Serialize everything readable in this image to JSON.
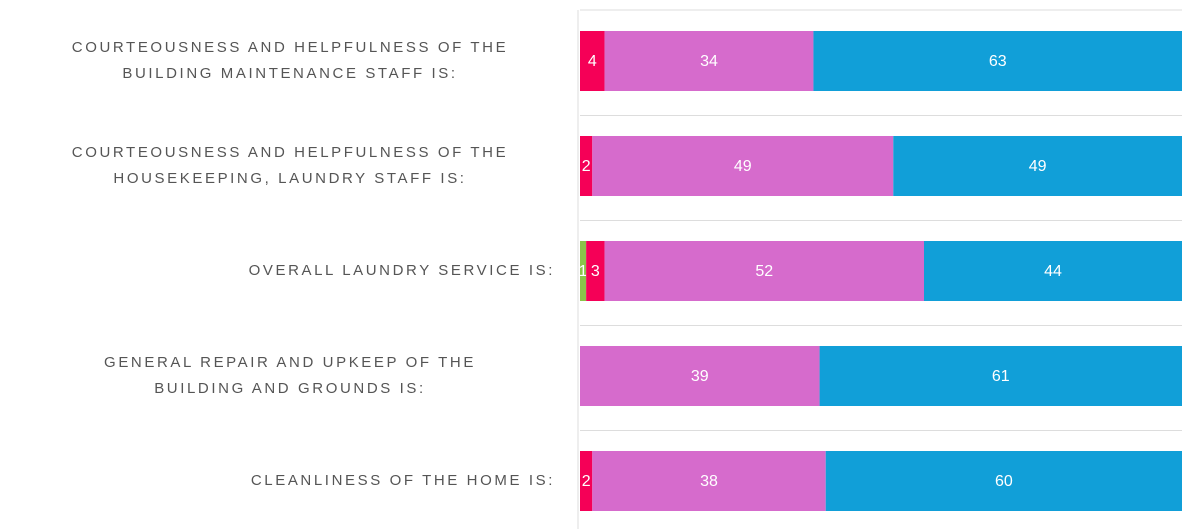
{
  "chart_data": {
    "type": "stacked-bar-horizontal",
    "categories": [
      [
        "COURTEOUSNESS AND HELPFULNESS OF THE",
        "BUILDING MAINTENANCE STAFF IS:"
      ],
      [
        "COURTEOUSNESS AND HELPFULNESS OF THE",
        "HOUSEKEEPING, LAUNDRY STAFF IS:"
      ],
      [
        "OVERALL LAUNDRY SERVICE IS:"
      ],
      [
        "GENERAL REPAIR AND UPKEEP OF THE",
        "BUILDING AND GROUNDS IS:"
      ],
      [
        "CLEANLINESS OF THE HOME IS:"
      ]
    ],
    "series": [
      {
        "color": "#8bc34a",
        "values": [
          0,
          0,
          1,
          0,
          0
        ]
      },
      {
        "color": "#f50057",
        "values": [
          4,
          2,
          3,
          0,
          2
        ]
      },
      {
        "color": "#d66bcc",
        "values": [
          34,
          49,
          52,
          39,
          38
        ]
      },
      {
        "color": "#119fd8",
        "values": [
          63,
          49,
          44,
          61,
          60
        ]
      }
    ],
    "xlim": [
      0,
      98
    ]
  }
}
